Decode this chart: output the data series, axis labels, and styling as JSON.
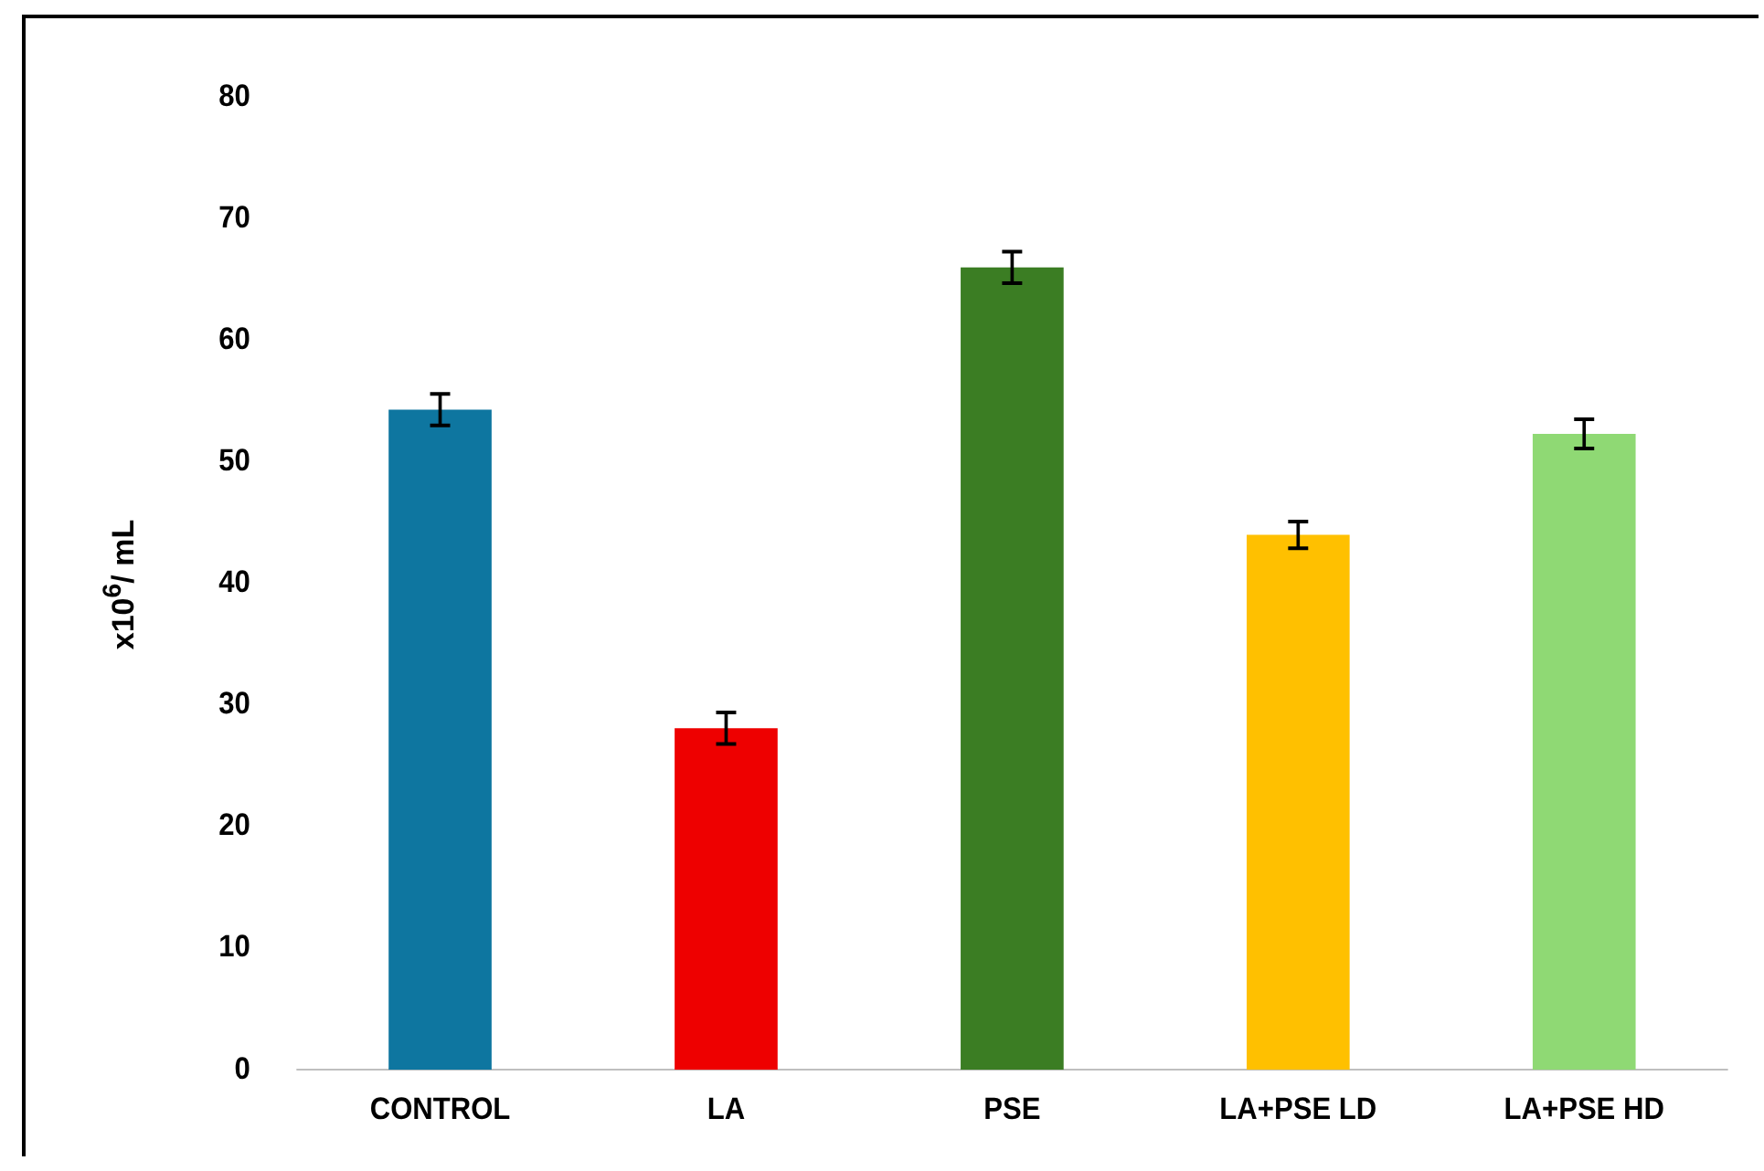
{
  "chart_data": {
    "type": "bar",
    "ylabel": "x10$^{6}$/ mL",
    "categories": [
      "CONTROL",
      "LA",
      "PSE",
      "LA+PSE LD",
      "LA+PSE HD"
    ],
    "values": [
      54.3,
      28.1,
      66.0,
      44.0,
      52.3
    ],
    "colors": [
      "#0e76a0",
      "#ee0000",
      "#3b7d23",
      "#ffc000",
      "#8fd974"
    ],
    "errors": [
      1.3,
      1.3,
      1.3,
      1.1,
      1.2
    ],
    "ylim": [
      0,
      80
    ],
    "yticks": [
      0,
      10,
      20,
      30,
      40,
      50,
      60,
      70,
      80
    ],
    "grid": false,
    "legend": false
  }
}
